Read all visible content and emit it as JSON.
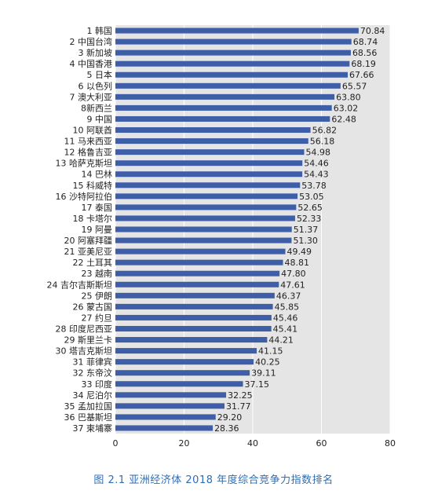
{
  "caption": "图 2.1   亚洲经济体 2018 年度综合竞争力指数排名",
  "colors": {
    "bar": "#3e5ea8",
    "plot_background": "#e5e5e5",
    "grid": "#ffffff",
    "text": "#222222",
    "caption": "#2f6db4"
  },
  "chart_data": {
    "type": "bar",
    "orientation": "horizontal",
    "title": "亚洲经济体 2018 年度综合竞争力指数排名",
    "xlabel": "",
    "ylabel": "",
    "xlim": [
      0,
      80
    ],
    "x_ticks": [
      "0",
      "20",
      "40",
      "60",
      "80"
    ],
    "grid": true,
    "categories": [
      "1 韩国",
      "2 中国台湾",
      "3 新加坡",
      "4 中国香港",
      "5 日本",
      "6 以色列",
      "7 澳大利亚",
      "8新西兰",
      "9 中国",
      "10 阿联酋",
      "11 马来西亚",
      "12 格鲁吉亚",
      "13 哈萨克斯坦",
      "14 巴林",
      "15 科威特",
      "16 沙特阿拉伯",
      "17 泰国",
      "18 卡塔尔",
      "19 阿曼",
      "20 阿塞拜疆",
      "21 亚美尼亚",
      "22 土耳其",
      "23 越南",
      "24 吉尔吉斯斯坦",
      "25 伊朗",
      "26 蒙古国",
      "27 约旦",
      "28 印度尼西亚",
      "29 斯里兰卡",
      "30 塔吉克斯坦",
      "31 菲律宾",
      "32 东帝汶",
      "33 印度",
      "34 尼泊尔",
      "35 孟加拉国",
      "36 巴基斯坦",
      "37 柬埔寨"
    ],
    "values": [
      70.84,
      68.74,
      68.56,
      68.19,
      67.66,
      65.57,
      63.8,
      63.02,
      62.48,
      56.82,
      56.18,
      54.98,
      54.46,
      54.43,
      53.78,
      53.05,
      52.65,
      52.33,
      51.37,
      51.3,
      49.49,
      48.81,
      47.8,
      47.61,
      46.37,
      45.85,
      45.46,
      45.41,
      44.21,
      41.15,
      40.25,
      39.11,
      37.15,
      32.25,
      31.77,
      29.2,
      28.36
    ],
    "value_labels": [
      "70.84",
      "68.74",
      "68.56",
      "68.19",
      "67.66",
      "65.57",
      "63.80",
      "63.02",
      "62.48",
      "56.82",
      "56.18",
      "54.98",
      "54.46",
      "54.43",
      "53.78",
      "53.05",
      "52.65",
      "52.33",
      "51.37",
      "51.30",
      "49.49",
      "48.81",
      "47.80",
      "47.61",
      "46.37",
      "45.85",
      "45.46",
      "45.41",
      "44.21",
      "41.15",
      "40.25",
      "39.11",
      "37.15",
      "32.25",
      "31.77",
      "29.20",
      "28.36"
    ]
  }
}
